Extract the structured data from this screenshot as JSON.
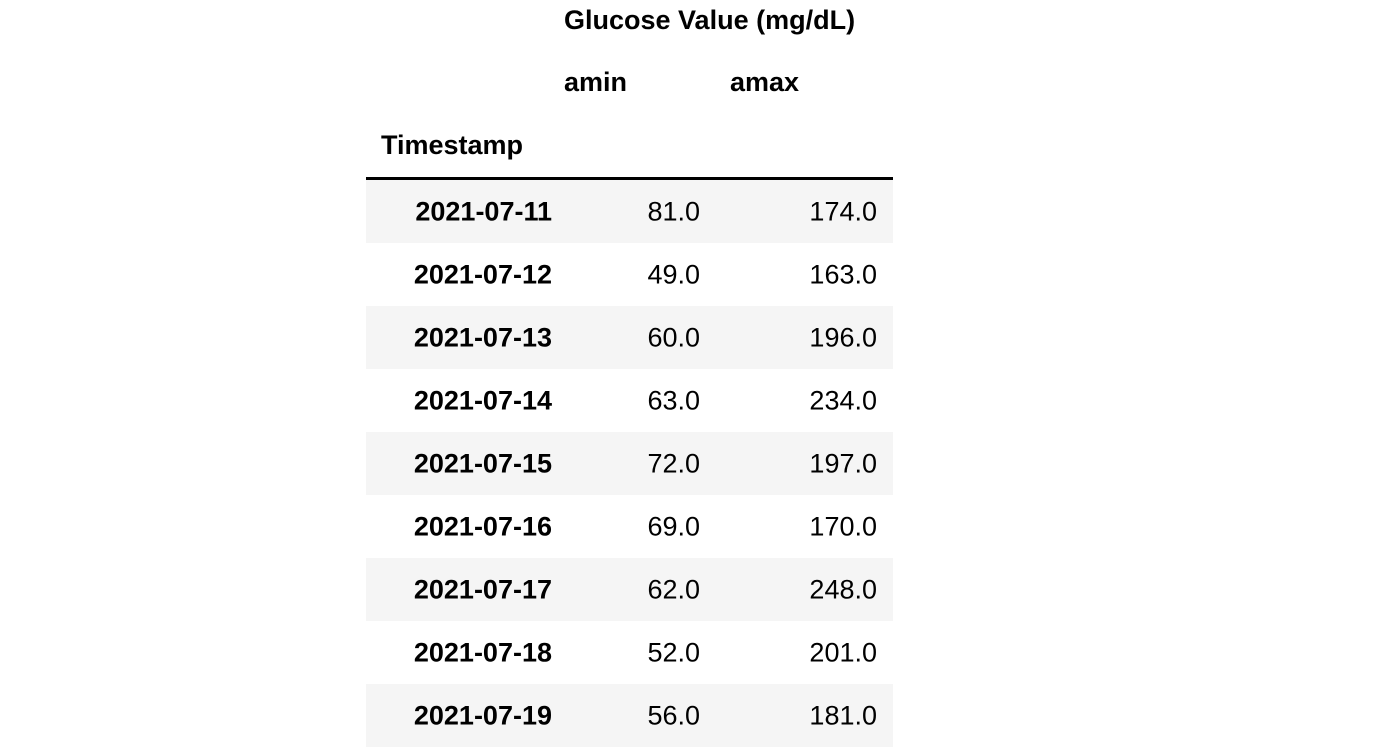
{
  "table": {
    "column_group_label": "Glucose Value (mg/dL)",
    "columns": [
      "amin",
      "amax"
    ],
    "index_name": "Timestamp",
    "rows": [
      {
        "index": "2021-07-11",
        "amin": "81.0",
        "amax": "174.0"
      },
      {
        "index": "2021-07-12",
        "amin": "49.0",
        "amax": "163.0"
      },
      {
        "index": "2021-07-13",
        "amin": "60.0",
        "amax": "196.0"
      },
      {
        "index": "2021-07-14",
        "amin": "63.0",
        "amax": "234.0"
      },
      {
        "index": "2021-07-15",
        "amin": "72.0",
        "amax": "197.0"
      },
      {
        "index": "2021-07-16",
        "amin": "69.0",
        "amax": "170.0"
      },
      {
        "index": "2021-07-17",
        "amin": "62.0",
        "amax": "248.0"
      },
      {
        "index": "2021-07-18",
        "amin": "52.0",
        "amax": "201.0"
      },
      {
        "index": "2021-07-19",
        "amin": "56.0",
        "amax": "181.0"
      }
    ],
    "stripe_color": "#f5f5f5"
  }
}
